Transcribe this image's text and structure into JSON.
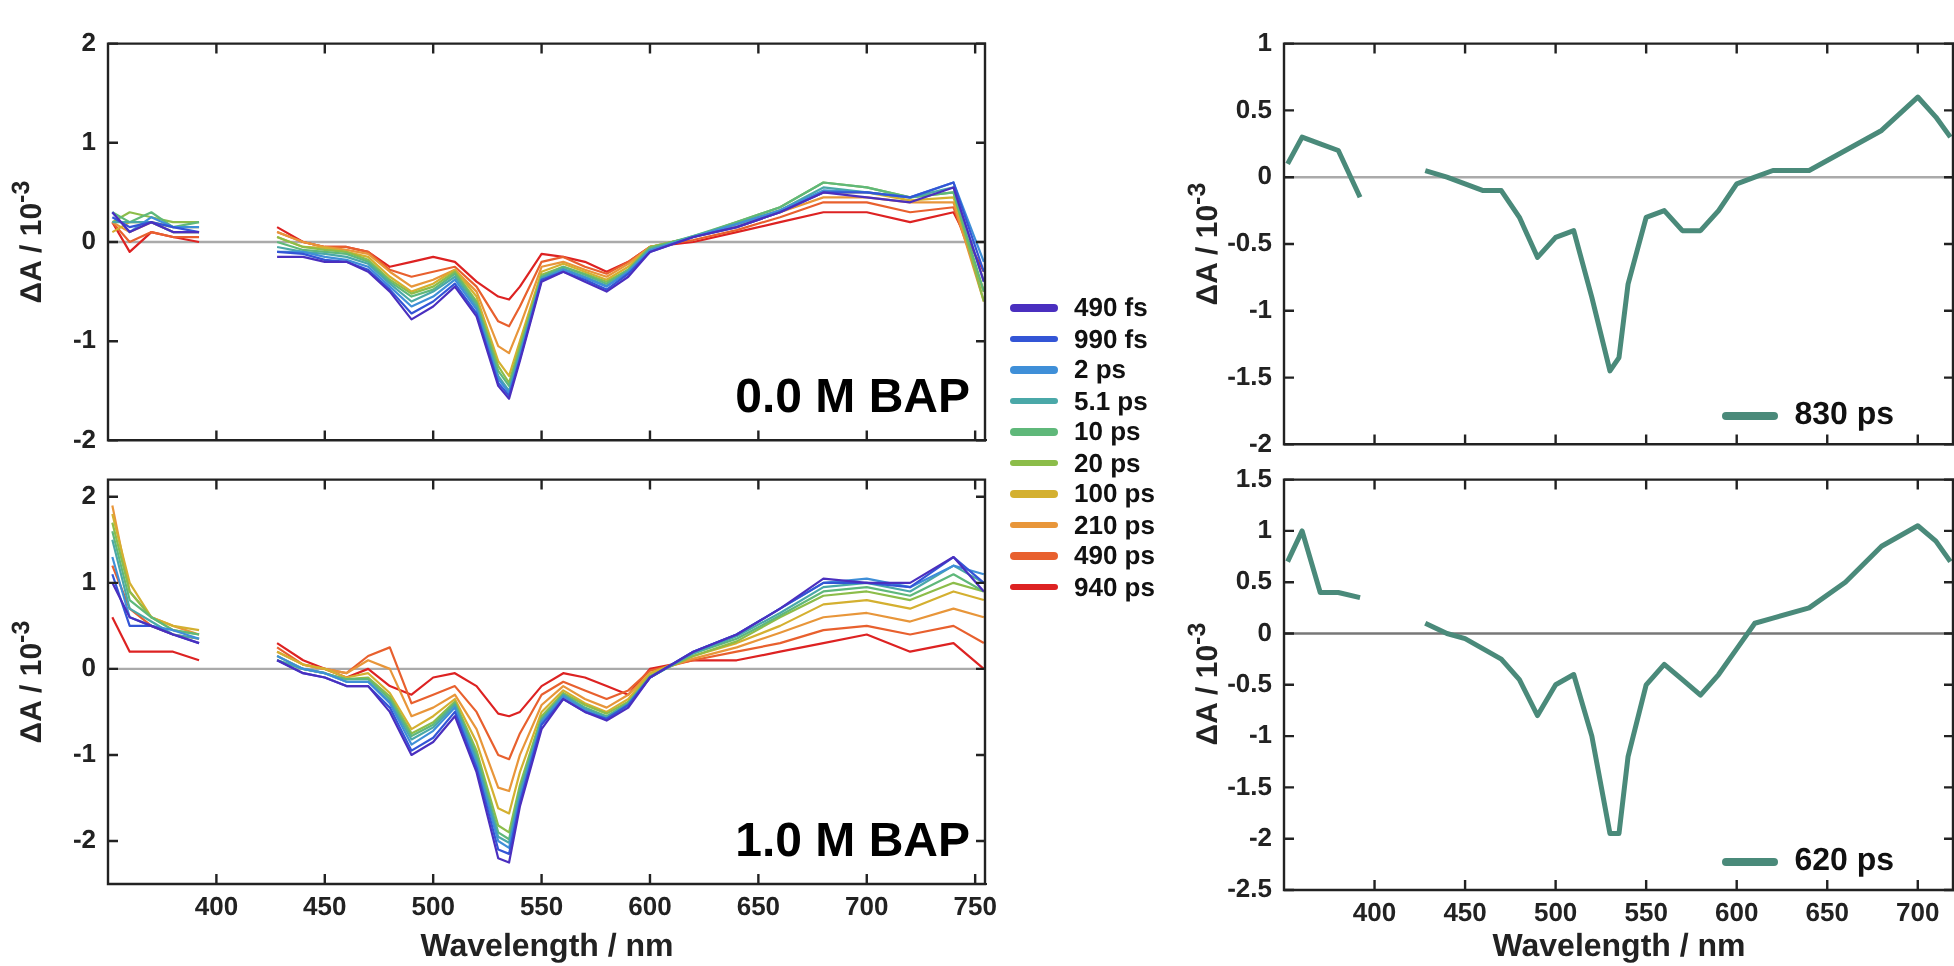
{
  "chart_data": [
    {
      "type": "line",
      "ylabel": "ΔA / 10$^{-3}$",
      "annotations": [
        "0.0 M BAP"
      ],
      "legend": "right",
      "tick_labels": "y",
      "marker": "none",
      "xlim": [
        350,
        755
      ],
      "xticks": [
        400,
        450,
        500,
        550,
        600,
        650,
        700,
        750
      ],
      "ylim": [
        -2,
        2
      ],
      "yticks": [
        -2,
        -1,
        0,
        1,
        2
      ],
      "ref_lines": [
        {
          "axis": "y",
          "value": 0,
          "color": "#aaaaaa"
        }
      ],
      "x": [
        352,
        360,
        370,
        380,
        392,
        410,
        428,
        440,
        450,
        460,
        470,
        480,
        490,
        500,
        510,
        520,
        530,
        535,
        540,
        550,
        560,
        570,
        580,
        590,
        600,
        620,
        640,
        660,
        680,
        700,
        720,
        740,
        754
      ],
      "series": [
        {
          "name": "490 fs",
          "color": "#4a2fbf",
          "values": [
            0.3,
            0.1,
            0.2,
            0.1,
            0.1,
            null,
            -0.15,
            -0.15,
            -0.2,
            -0.2,
            -0.3,
            -0.5,
            -0.78,
            -0.65,
            -0.45,
            -0.75,
            -1.45,
            -1.58,
            -1.2,
            -0.4,
            -0.3,
            -0.4,
            -0.5,
            -0.35,
            -0.1,
            0.05,
            0.15,
            0.3,
            0.5,
            0.45,
            0.4,
            0.55,
            -0.4
          ]
        },
        {
          "name": "990 fs",
          "color": "#3355d6",
          "values": [
            0.25,
            0.15,
            0.2,
            0.15,
            0.1,
            null,
            -0.1,
            -0.12,
            -0.18,
            -0.2,
            -0.28,
            -0.48,
            -0.72,
            -0.6,
            -0.42,
            -0.72,
            -1.42,
            -1.55,
            -1.18,
            -0.38,
            -0.3,
            -0.38,
            -0.48,
            -0.32,
            -0.1,
            0.05,
            0.15,
            0.3,
            0.5,
            0.5,
            0.45,
            0.6,
            -0.3
          ]
        },
        {
          "name": "2 ps",
          "color": "#3f8fd8",
          "values": [
            0.3,
            0.1,
            0.25,
            0.15,
            0.15,
            null,
            -0.1,
            -0.1,
            -0.15,
            -0.18,
            -0.25,
            -0.45,
            -0.65,
            -0.55,
            -0.38,
            -0.68,
            -1.38,
            -1.52,
            -1.15,
            -0.38,
            -0.28,
            -0.36,
            -0.45,
            -0.3,
            -0.08,
            0.05,
            0.18,
            0.32,
            0.52,
            0.5,
            0.45,
            0.6,
            -0.2
          ]
        },
        {
          "name": "5.1 ps",
          "color": "#4aa8a8",
          "values": [
            0.2,
            0.2,
            0.2,
            0.1,
            0.1,
            null,
            -0.05,
            -0.1,
            -0.12,
            -0.15,
            -0.22,
            -0.42,
            -0.6,
            -0.5,
            -0.35,
            -0.65,
            -1.35,
            -1.5,
            -1.12,
            -0.36,
            -0.27,
            -0.35,
            -0.44,
            -0.3,
            -0.08,
            0.06,
            0.18,
            0.32,
            0.55,
            0.5,
            0.45,
            0.55,
            -0.4
          ]
        },
        {
          "name": "10 ps",
          "color": "#5fb87a",
          "values": [
            0.3,
            0.2,
            0.3,
            0.15,
            0.2,
            null,
            0.0,
            -0.08,
            -0.1,
            -0.12,
            -0.2,
            -0.4,
            -0.55,
            -0.48,
            -0.32,
            -0.62,
            -1.3,
            -1.45,
            -1.1,
            -0.35,
            -0.25,
            -0.33,
            -0.42,
            -0.28,
            -0.06,
            0.06,
            0.2,
            0.35,
            0.6,
            0.55,
            0.45,
            0.5,
            -0.5
          ]
        },
        {
          "name": "20 ps",
          "color": "#8cbd4a",
          "values": [
            0.2,
            0.3,
            0.25,
            0.2,
            0.2,
            null,
            0.05,
            -0.05,
            -0.08,
            -0.1,
            -0.18,
            -0.38,
            -0.52,
            -0.45,
            -0.3,
            -0.6,
            -1.25,
            -1.42,
            -1.05,
            -0.33,
            -0.25,
            -0.32,
            -0.4,
            -0.28,
            -0.05,
            0.05,
            0.2,
            0.35,
            0.6,
            0.55,
            0.45,
            0.5,
            -0.6
          ]
        },
        {
          "name": "100 ps",
          "color": "#d4b030",
          "values": [
            0.1,
            0.2,
            0.2,
            0.15,
            0.15,
            null,
            0.05,
            -0.05,
            -0.06,
            -0.1,
            -0.15,
            -0.35,
            -0.5,
            -0.42,
            -0.28,
            -0.55,
            -1.2,
            -1.35,
            -1.0,
            -0.3,
            -0.22,
            -0.3,
            -0.38,
            -0.25,
            -0.05,
            0.05,
            0.18,
            0.32,
            0.5,
            0.5,
            0.42,
            0.45,
            -0.5
          ]
        },
        {
          "name": "210 ps",
          "color": "#e8963a",
          "values": [
            0.2,
            0.1,
            0.2,
            0.1,
            0.1,
            null,
            0.1,
            0.0,
            -0.05,
            -0.08,
            -0.12,
            -0.3,
            -0.45,
            -0.38,
            -0.28,
            -0.5,
            -1.05,
            -1.12,
            -0.85,
            -0.25,
            -0.2,
            -0.28,
            -0.35,
            -0.22,
            -0.05,
            0.05,
            0.15,
            0.3,
            0.45,
            0.45,
            0.4,
            0.4,
            -0.6
          ]
        },
        {
          "name": "490 ps",
          "color": "#e8602e",
          "values": [
            0.2,
            0.0,
            0.1,
            0.05,
            0.05,
            null,
            0.1,
            0.0,
            -0.05,
            -0.05,
            -0.1,
            -0.28,
            -0.35,
            -0.3,
            -0.25,
            -0.45,
            -0.8,
            -0.85,
            -0.65,
            -0.2,
            -0.15,
            -0.25,
            -0.32,
            -0.2,
            -0.05,
            0.02,
            0.12,
            0.25,
            0.4,
            0.4,
            0.3,
            0.35,
            -0.5
          ]
        },
        {
          "name": "940 ps",
          "color": "#dd2222",
          "values": [
            0.2,
            -0.1,
            0.1,
            0.05,
            0.0,
            null,
            0.15,
            0.0,
            -0.05,
            -0.05,
            -0.1,
            -0.25,
            -0.2,
            -0.15,
            -0.2,
            -0.4,
            -0.55,
            -0.58,
            -0.45,
            -0.12,
            -0.15,
            -0.2,
            -0.3,
            -0.2,
            -0.05,
            0.0,
            0.1,
            0.2,
            0.3,
            0.3,
            0.2,
            0.3,
            -0.3
          ]
        }
      ]
    },
    {
      "type": "line",
      "ylabel": "ΔA / 10$^{-3}$",
      "xlabel": "Wavelength / nm",
      "annotations": [
        "1.0 M BAP"
      ],
      "marker": "none",
      "xlim": [
        350,
        755
      ],
      "xticks": [
        400,
        450,
        500,
        550,
        600,
        650,
        700,
        750
      ],
      "ylim": [
        -2.5,
        2.2
      ],
      "yticks": [
        -2,
        -1,
        0,
        1,
        2
      ],
      "ref_lines": [
        {
          "axis": "y",
          "value": 0,
          "color": "#aaaaaa"
        }
      ],
      "x": [
        352,
        360,
        370,
        380,
        392,
        410,
        428,
        440,
        450,
        460,
        470,
        480,
        490,
        500,
        510,
        520,
        530,
        535,
        540,
        550,
        560,
        570,
        580,
        590,
        600,
        620,
        640,
        660,
        680,
        700,
        720,
        740,
        754
      ],
      "series": [
        {
          "color": "#4a2fbf",
          "values": [
            1.0,
            0.6,
            0.5,
            0.4,
            0.3,
            null,
            0.1,
            -0.05,
            -0.1,
            -0.2,
            -0.2,
            -0.5,
            -1.0,
            -0.85,
            -0.55,
            -1.2,
            -2.2,
            -2.25,
            -1.6,
            -0.7,
            -0.35,
            -0.5,
            -0.6,
            -0.45,
            -0.1,
            0.2,
            0.4,
            0.7,
            1.05,
            1.0,
            1.0,
            1.3,
            0.9
          ]
        },
        {
          "color": "#3355d6",
          "values": [
            1.1,
            0.5,
            0.5,
            0.4,
            0.3,
            null,
            0.1,
            -0.05,
            -0.1,
            -0.2,
            -0.2,
            -0.45,
            -0.95,
            -0.8,
            -0.5,
            -1.15,
            -2.1,
            -2.15,
            -1.55,
            -0.65,
            -0.35,
            -0.5,
            -0.58,
            -0.42,
            -0.1,
            0.2,
            0.4,
            0.7,
            1.0,
            1.0,
            0.95,
            1.3,
            1.0
          ]
        },
        {
          "color": "#3f8fd8",
          "values": [
            1.3,
            0.6,
            0.5,
            0.45,
            0.35,
            null,
            0.15,
            0.0,
            -0.05,
            -0.15,
            -0.15,
            -0.4,
            -0.88,
            -0.72,
            -0.45,
            -1.1,
            -2.0,
            -2.08,
            -1.5,
            -0.62,
            -0.32,
            -0.48,
            -0.58,
            -0.42,
            -0.1,
            0.2,
            0.4,
            0.7,
            1.0,
            1.05,
            0.95,
            1.2,
            1.1
          ]
        },
        {
          "color": "#4aa8a8",
          "values": [
            1.5,
            0.7,
            0.55,
            0.4,
            0.35,
            null,
            0.1,
            0.0,
            -0.05,
            -0.15,
            -0.15,
            -0.38,
            -0.82,
            -0.68,
            -0.42,
            -1.05,
            -1.95,
            -2.02,
            -1.45,
            -0.6,
            -0.3,
            -0.46,
            -0.56,
            -0.4,
            -0.1,
            0.18,
            0.38,
            0.65,
            0.95,
            1.0,
            0.9,
            1.2,
            1.0
          ]
        },
        {
          "color": "#5fb87a",
          "values": [
            1.6,
            0.8,
            0.6,
            0.45,
            0.4,
            null,
            0.1,
            0.0,
            -0.05,
            -0.12,
            -0.12,
            -0.35,
            -0.78,
            -0.65,
            -0.4,
            -1.0,
            -1.9,
            -1.98,
            -1.4,
            -0.58,
            -0.3,
            -0.45,
            -0.55,
            -0.4,
            -0.1,
            0.18,
            0.35,
            0.62,
            0.9,
            0.95,
            0.85,
            1.1,
            0.9
          ]
        },
        {
          "color": "#8cbd4a",
          "values": [
            1.7,
            0.9,
            0.6,
            0.45,
            0.4,
            null,
            0.15,
            0.0,
            -0.05,
            -0.12,
            -0.1,
            -0.32,
            -0.75,
            -0.62,
            -0.38,
            -0.95,
            -1.82,
            -1.9,
            -1.35,
            -0.55,
            -0.28,
            -0.42,
            -0.52,
            -0.38,
            -0.08,
            0.15,
            0.32,
            0.6,
            0.85,
            0.9,
            0.8,
            1.0,
            0.9
          ]
        },
        {
          "color": "#d4b030",
          "values": [
            1.8,
            1.0,
            0.6,
            0.5,
            0.45,
            null,
            0.2,
            0.05,
            0.0,
            -0.1,
            -0.05,
            -0.28,
            -0.7,
            -0.55,
            -0.35,
            -0.85,
            -1.62,
            -1.68,
            -1.2,
            -0.5,
            -0.25,
            -0.4,
            -0.5,
            -0.35,
            -0.05,
            0.15,
            0.3,
            0.5,
            0.75,
            0.8,
            0.7,
            0.9,
            0.8
          ]
        },
        {
          "color": "#e8963a",
          "values": [
            1.9,
            0.9,
            0.6,
            0.5,
            0.4,
            null,
            0.2,
            0.05,
            0.0,
            -0.05,
            0.1,
            0.0,
            -0.55,
            -0.45,
            -0.3,
            -0.7,
            -1.38,
            -1.42,
            -1.0,
            -0.42,
            -0.2,
            -0.35,
            -0.45,
            -0.3,
            -0.05,
            0.12,
            0.25,
            0.42,
            0.6,
            0.65,
            0.55,
            0.7,
            0.6
          ]
        },
        {
          "color": "#e8602e",
          "values": [
            1.2,
            0.7,
            0.5,
            0.4,
            0.35,
            null,
            0.25,
            0.05,
            0.0,
            -0.05,
            0.15,
            0.25,
            -0.4,
            -0.3,
            -0.2,
            -0.5,
            -1.0,
            -1.05,
            -0.75,
            -0.3,
            -0.15,
            -0.25,
            -0.35,
            -0.25,
            -0.02,
            0.1,
            0.2,
            0.3,
            0.45,
            0.5,
            0.4,
            0.5,
            0.3
          ]
        },
        {
          "color": "#dd2222",
          "values": [
            0.6,
            0.2,
            0.2,
            0.2,
            0.1,
            null,
            0.3,
            0.1,
            0.0,
            -0.1,
            0.0,
            -0.2,
            -0.3,
            -0.1,
            -0.05,
            -0.2,
            -0.52,
            -0.55,
            -0.5,
            -0.2,
            -0.05,
            -0.1,
            -0.2,
            -0.3,
            0.0,
            0.1,
            0.1,
            0.2,
            0.3,
            0.4,
            0.2,
            0.3,
            0.0
          ]
        }
      ]
    },
    {
      "type": "line",
      "ylabel": "ΔA / 10$^{-3}$",
      "legend": "bottom right",
      "tick_labels": "y",
      "marker": "none",
      "xlim": [
        350,
        720
      ],
      "xticks": [
        400,
        450,
        500,
        550,
        600,
        650,
        700
      ],
      "ylim": [
        -2,
        1
      ],
      "yticks": [
        -2,
        -1.5,
        -1,
        -0.5,
        0,
        0.5,
        1
      ],
      "ref_lines": [
        {
          "axis": "y",
          "value": 0,
          "color": "#aaaaaa"
        }
      ],
      "x": [
        352,
        360,
        370,
        380,
        392,
        410,
        428,
        440,
        450,
        460,
        470,
        480,
        490,
        500,
        510,
        520,
        530,
        535,
        540,
        550,
        560,
        570,
        580,
        590,
        600,
        610,
        620,
        640,
        660,
        680,
        700,
        710,
        718
      ],
      "series": [
        {
          "name": "830 ps",
          "color": "#4a8a7a",
          "values": [
            0.1,
            0.3,
            0.25,
            0.2,
            -0.15,
            null,
            0.05,
            0.0,
            -0.05,
            -0.1,
            -0.1,
            -0.3,
            -0.6,
            -0.45,
            -0.4,
            -0.9,
            -1.45,
            -1.35,
            -0.8,
            -0.3,
            -0.25,
            -0.4,
            -0.4,
            -0.25,
            -0.05,
            0.0,
            0.05,
            0.05,
            0.2,
            0.35,
            0.6,
            0.45,
            0.3
          ]
        }
      ]
    },
    {
      "type": "line",
      "ylabel": "ΔA / 10$^{-3}$",
      "xlabel": "Wavelength / nm",
      "legend": "bottom right",
      "marker": "none",
      "xlim": [
        350,
        720
      ],
      "xticks": [
        400,
        450,
        500,
        550,
        600,
        650,
        700
      ],
      "ylim": [
        -2.5,
        1.5
      ],
      "yticks": [
        -2.5,
        -2,
        -1.5,
        -1,
        -0.5,
        0,
        0.5,
        1,
        1.5
      ],
      "ref_lines": [
        {
          "axis": "y",
          "value": 0,
          "color": "#777777"
        }
      ],
      "x": [
        352,
        360,
        370,
        380,
        392,
        410,
        428,
        440,
        450,
        460,
        470,
        480,
        490,
        500,
        510,
        520,
        530,
        535,
        540,
        550,
        560,
        570,
        580,
        590,
        600,
        610,
        620,
        640,
        660,
        680,
        700,
        710,
        718
      ],
      "series": [
        {
          "name": "620 ps",
          "color": "#4a8a7a",
          "values": [
            0.7,
            1.0,
            0.4,
            0.4,
            0.35,
            null,
            0.1,
            0.0,
            -0.05,
            -0.15,
            -0.25,
            -0.45,
            -0.8,
            -0.5,
            -0.4,
            -1.0,
            -1.95,
            -1.95,
            -1.2,
            -0.5,
            -0.3,
            -0.45,
            -0.6,
            -0.4,
            -0.15,
            0.1,
            0.15,
            0.25,
            0.5,
            0.85,
            1.05,
            0.9,
            0.7
          ]
        }
      ]
    }
  ]
}
